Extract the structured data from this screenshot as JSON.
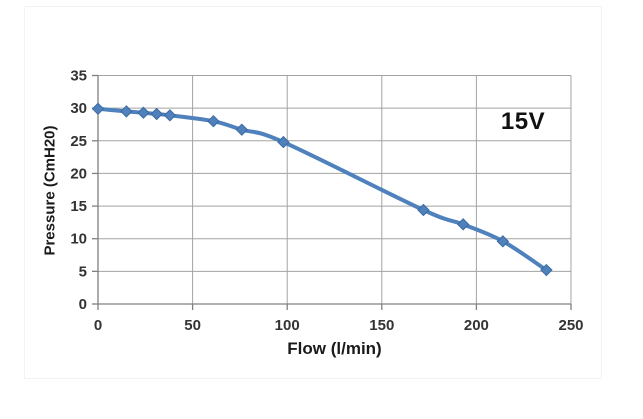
{
  "chart_data": {
    "type": "line",
    "x": [
      0,
      15,
      24,
      31,
      38,
      61,
      76,
      98,
      172,
      193,
      214,
      237
    ],
    "y": [
      29.9,
      29.5,
      29.3,
      29.1,
      28.9,
      28.0,
      26.7,
      24.8,
      14.4,
      12.2,
      9.6,
      5.2
    ],
    "series": [
      {
        "name": "15V",
        "x": [
          0,
          15,
          24,
          31,
          38,
          61,
          76,
          98,
          172,
          193,
          214,
          237
        ],
        "values": [
          29.9,
          29.5,
          29.3,
          29.1,
          28.9,
          28.0,
          26.7,
          24.8,
          14.4,
          12.2,
          9.6,
          5.2
        ]
      }
    ],
    "title": "",
    "xlabel": "Flow (l/min)",
    "ylabel": "Pressure (CmH20)",
    "annotation": "15V",
    "xlim": [
      0,
      250
    ],
    "ylim": [
      0,
      35
    ],
    "xticks": [
      0,
      50,
      100,
      150,
      200,
      250
    ],
    "yticks": [
      0,
      5,
      10,
      15,
      20,
      25,
      30,
      35
    ],
    "grid": true,
    "legend_position": "none",
    "line_color": "#4F81BD",
    "marker": "diamond",
    "marker_color": "#4F81BD",
    "gridline_color": "#a3a3a3",
    "axis_color": "#808080"
  }
}
